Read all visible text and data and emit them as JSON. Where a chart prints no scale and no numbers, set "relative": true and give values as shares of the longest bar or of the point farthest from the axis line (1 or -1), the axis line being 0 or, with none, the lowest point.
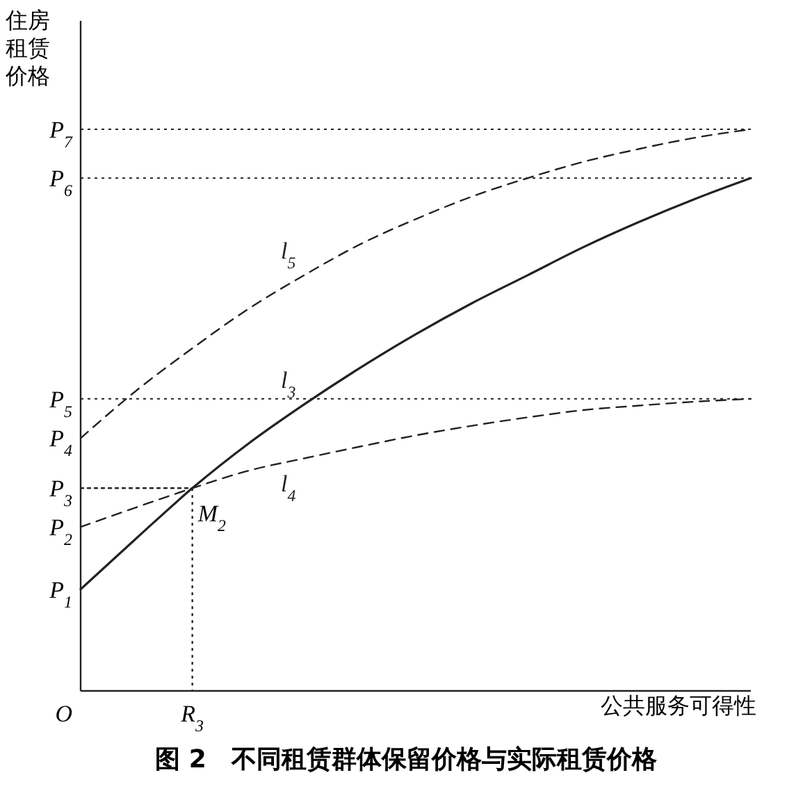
{
  "chart_data": {
    "type": "line",
    "relative": true,
    "title": "图 2　不同租赁群体保留价格与实际租赁价格",
    "xlabel": "公共服务可得性",
    "ylabel": "住房租赁价格",
    "categories": [
      null,
      null,
      null,
      null,
      null,
      null,
      null,
      null,
      null,
      null,
      null,
      null,
      null
    ],
    "series": [
      {
        "name": "l$_{5}$",
        "color": "#222222",
        "line_style": "dashed",
        "values": [
          0.45,
          0.535,
          0.61,
          0.68,
          0.74,
          0.795,
          0.84,
          0.88,
          0.913,
          0.942,
          0.965,
          0.985,
          1
        ]
      },
      {
        "name": "l$_{3}$",
        "color": "#222222",
        "line_style": "solid",
        "values": [
          0.181,
          0.272,
          0.361,
          0.44,
          0.51,
          0.575,
          0.635,
          0.69,
          0.74,
          0.79,
          0.835,
          0.876,
          0.913
        ]
      },
      {
        "name": "l$_{4}$",
        "color": "#222222",
        "line_style": "dashed",
        "values": [
          0.292,
          0.327,
          0.361,
          0.392,
          0.414,
          0.435,
          0.455,
          0.472,
          0.487,
          0.5,
          0.508,
          0.515,
          0.52
        ]
      },
      {
        "color": "#222222",
        "line_style": "dotted",
        "values": [
          0.361,
          0.361,
          0.361,
          null,
          null,
          null,
          null,
          null,
          null,
          null,
          null,
          null,
          null
        ]
      }
    ],
    "ref_lines": [
      {
        "axis": "y",
        "value": 1,
        "label": "P$_{7}$",
        "line_style": "dotted"
      },
      {
        "axis": "y",
        "value": 0.913,
        "label": "P$_{6}$",
        "line_style": "dotted"
      },
      {
        "axis": "y",
        "value": 0.52,
        "label": "P$_{5}$",
        "line_style": "dotted"
      }
    ],
    "annotations": [
      "P$_{4}$",
      "P$_{3}$",
      "P$_{2}$",
      "P$_{1}$",
      "O",
      "M$_{2}$",
      "R$_{3}$"
    ]
  }
}
